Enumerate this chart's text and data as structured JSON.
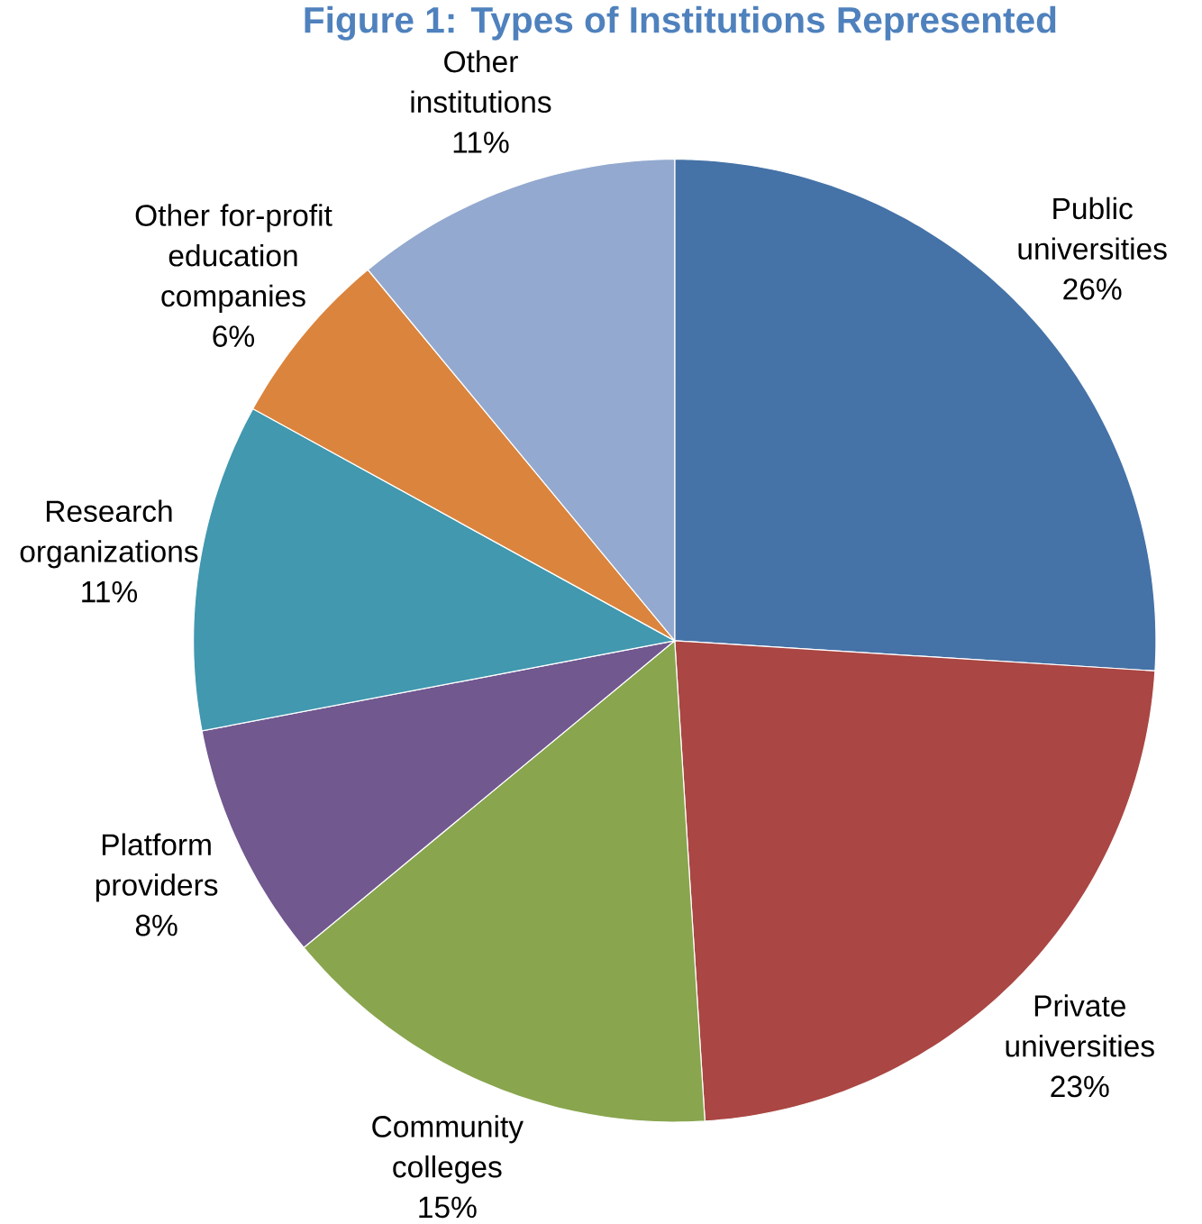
{
  "chart_data": {
    "type": "pie",
    "title": "Figure 1: Types of Institutions Represented",
    "categories": [
      "Public universities",
      "Private universities",
      "Community colleges",
      "Platform providers",
      "Research organizations",
      "Other for-profit education companies",
      "Other institutions"
    ],
    "values": [
      26,
      23,
      15,
      8,
      11,
      6,
      11
    ],
    "value_labels": [
      "26%",
      "23%",
      "15%",
      "8%",
      "11%",
      "6%",
      "11%"
    ],
    "colors": [
      "#4572a7",
      "#aa4643",
      "#89a54e",
      "#71588f",
      "#4198af",
      "#db843d",
      "#93a9cf"
    ]
  }
}
